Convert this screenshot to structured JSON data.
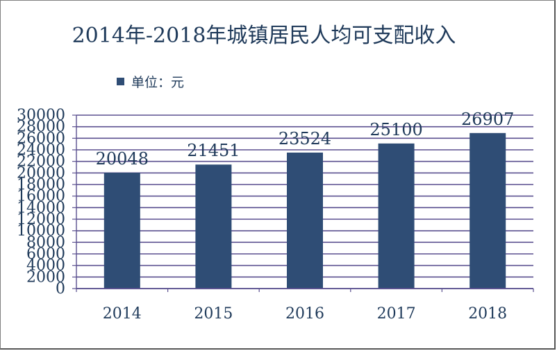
{
  "chart_data": {
    "type": "bar",
    "title": "2014年-2018年城镇居民人均可支配收入",
    "legend": {
      "label": "单位：元",
      "position": "top-left"
    },
    "categories": [
      "2014",
      "2015",
      "2016",
      "2017",
      "2018"
    ],
    "series": [
      {
        "name": "单位：元",
        "values": [
          20048,
          21451,
          23524,
          25100,
          26907
        ]
      }
    ],
    "y_ticks": [
      0,
      2000,
      4000,
      6000,
      8000,
      10000,
      12000,
      14000,
      16000,
      18000,
      20000,
      22000,
      24000,
      26000,
      28000,
      30000
    ],
    "ylim": [
      0,
      30000
    ],
    "grid": true,
    "colors": {
      "bar": "#2f4d75",
      "grid": "#5a4f8f",
      "text": "#1f3a5a"
    }
  }
}
